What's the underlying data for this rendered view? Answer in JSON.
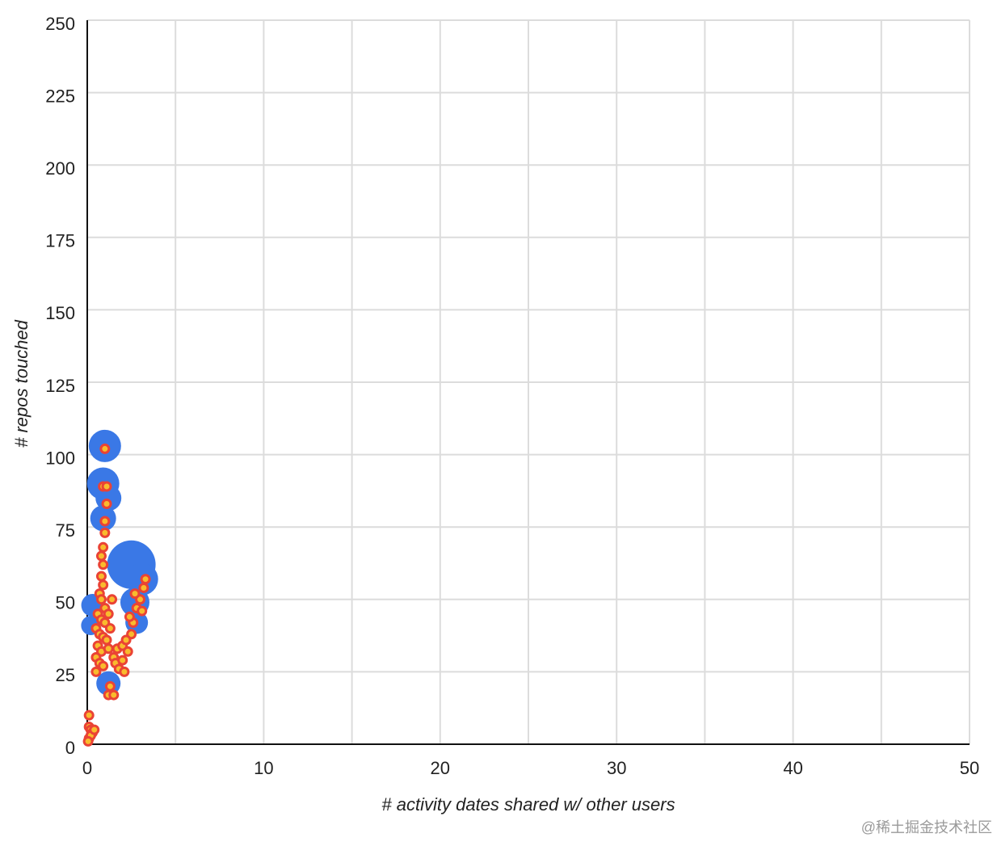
{
  "chart_data": {
    "type": "scatter",
    "x_label": "# activity dates shared w/ other users",
    "y_label": "# repos touched",
    "watermark": "@稀土掘金技术社区",
    "xlim": [
      0,
      50
    ],
    "xticks": [
      0,
      10,
      20,
      30,
      40,
      50
    ],
    "x_minor_grid": [
      5,
      15,
      25,
      35,
      45
    ],
    "ylim": [
      0,
      250
    ],
    "yticks": [
      0,
      25,
      50,
      75,
      100,
      125,
      150,
      175,
      200,
      225,
      250
    ],
    "grid": true,
    "series": [
      {
        "color": "#3a78e6",
        "x": [
          1.0,
          0.9,
          1.2,
          0.9,
          2.5,
          3.1,
          2.7,
          2.8,
          0.3,
          0.2,
          1.2
        ],
        "values": [
          103,
          90,
          85,
          78,
          62,
          57,
          49,
          42,
          48,
          41,
          21
        ],
        "sizes": [
          20,
          20,
          16,
          16,
          30,
          20,
          18,
          14,
          14,
          12,
          15
        ]
      },
      {
        "color": "#f9bb2d",
        "edge_color": "#ea4335",
        "x": [
          0.1,
          0.1,
          0.2,
          0.3,
          0.1,
          0.2,
          0.4,
          0.05,
          1.0,
          0.9,
          1.1,
          1.1,
          1.0,
          1.0,
          0.9,
          0.8,
          0.9,
          0.8,
          0.9,
          0.7,
          0.8,
          1.0,
          0.6,
          0.8,
          1.0,
          0.5,
          0.7,
          0.9,
          1.1,
          0.6,
          0.8,
          1.2,
          0.5,
          0.7,
          0.9,
          0.5,
          1.3,
          1.2,
          1.4,
          1.5,
          1.6,
          1.7,
          1.3,
          1.2,
          1.5,
          1.8,
          2.0,
          2.1,
          2.0,
          2.3,
          2.5,
          2.6,
          2.8,
          3.0,
          3.2,
          3.3,
          2.7,
          2.4,
          3.1,
          2.2
        ],
        "values": [
          10,
          6,
          5,
          4,
          2,
          3,
          5,
          1,
          102,
          89,
          89,
          83,
          77,
          73,
          68,
          65,
          62,
          58,
          55,
          52,
          50,
          47,
          45,
          43,
          42,
          40,
          38,
          37,
          36,
          34,
          32,
          33,
          30,
          28,
          27,
          25,
          40,
          45,
          50,
          30,
          28,
          33,
          20,
          17,
          17,
          26,
          29,
          25,
          34,
          32,
          38,
          42,
          47,
          50,
          54,
          57,
          52,
          44,
          46,
          36
        ]
      }
    ]
  }
}
